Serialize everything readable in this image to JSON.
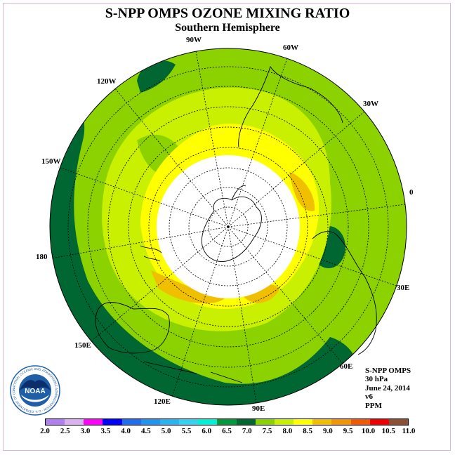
{
  "title": "S-NPP OMPS OZONE MIXING RATIO",
  "subtitle": "Southern Hemisphere",
  "longitude_labels": [
    "90W",
    "60W",
    "30W",
    "0",
    "30E",
    "60E",
    "90E",
    "120E",
    "150E",
    "180",
    "150W",
    "120W"
  ],
  "info": {
    "instrument": "S-NPP OMPS",
    "level": "30 hPa",
    "date": "June 24, 2014",
    "version": "v6",
    "units": "PPM"
  },
  "colorbar": {
    "ticks": [
      "2.0",
      "2.5",
      "3.0",
      "3.5",
      "4.0",
      "4.5",
      "5.0",
      "5.5",
      "6.0",
      "6.5",
      "7.0",
      "7.5",
      "8.0",
      "8.5",
      "9.0",
      "9.5",
      "10.0",
      "10.5",
      "11.0"
    ],
    "colors": [
      "#b27ff0",
      "#d9b0f0",
      "#ff00ff",
      "#0000ff",
      "#1e6ef0",
      "#1e96f0",
      "#28b4f0",
      "#32d2f0",
      "#00f0d8",
      "#009a3c",
      "#006632",
      "#8cd200",
      "#c8f000",
      "#ffff00",
      "#f0c000",
      "#f09600",
      "#f05a00",
      "#f00000",
      "#8c5032"
    ]
  },
  "logo": {
    "name": "noaa-logo",
    "text": "NOAA",
    "ring_text": "NATIONAL OCEANIC AND ATMOSPHERIC ADMINISTRATION · U.S. DEPARTMENT OF COMMERCE"
  }
}
